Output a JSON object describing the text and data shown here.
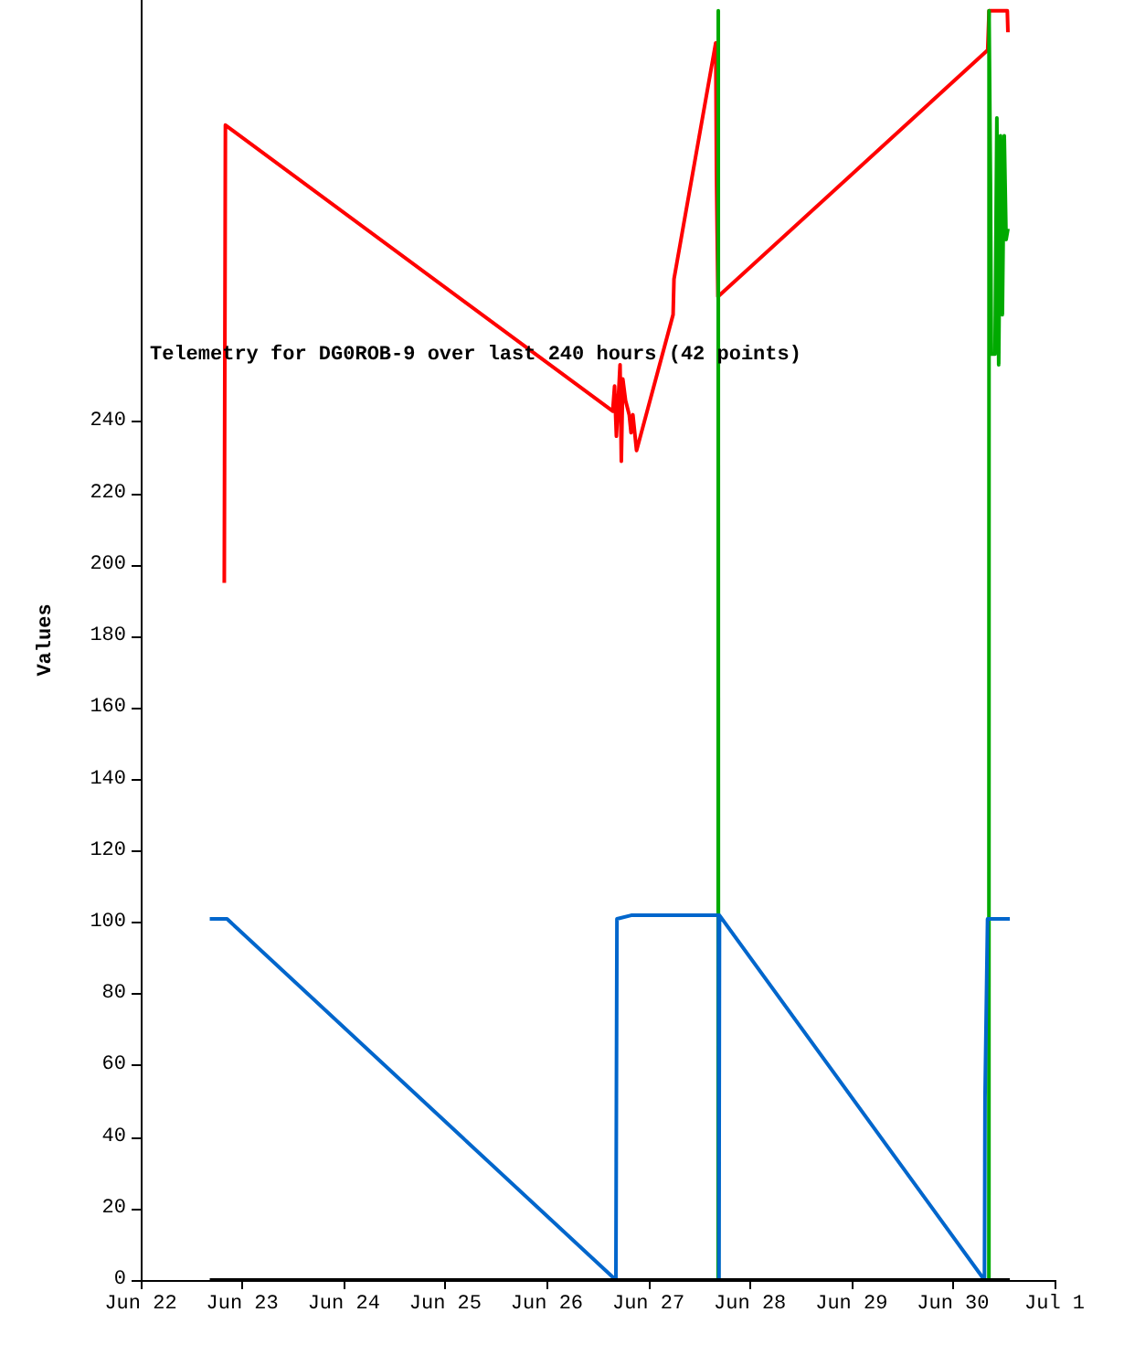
{
  "chart_data": {
    "type": "line",
    "title": "Telemetry for DG0ROB-9 over last 240 hours (42 points)",
    "ylabel": "Values",
    "xlim": [
      "--06-22",
      "--07-01"
    ],
    "xticks": [
      {
        "value": "--06-22",
        "label": "Jun 22"
      },
      {
        "value": "--06-23",
        "label": "Jun 23"
      },
      {
        "value": "--06-24",
        "label": "Jun 24"
      },
      {
        "value": "--06-25",
        "label": "Jun 25"
      },
      {
        "value": "--06-26",
        "label": "Jun 26"
      },
      {
        "value": "--06-27",
        "label": "Jun 27"
      },
      {
        "value": "--06-28",
        "label": "Jun 28"
      },
      {
        "value": "--06-29",
        "label": "Jun 29"
      },
      {
        "value": "--06-30",
        "label": "Jun 30"
      },
      {
        "value": "--07-01",
        "label": "Jul 1"
      }
    ],
    "ylim": [
      0,
      358
    ],
    "yticks": [
      0,
      20,
      40,
      60,
      80,
      100,
      120,
      140,
      160,
      180,
      200,
      220,
      240
    ],
    "grid": false,
    "marker": "none",
    "line_style": "solid",
    "series": [
      {
        "color": "#ff0000",
        "x": [
          "--06-22T19:45",
          "--06-22T20:01",
          "--06-26T15:34",
          "--06-26T16:00",
          "--06-26T16:26",
          "--06-26T17:18",
          "--06-26T17:36",
          "--06-26T17:57",
          "--06-26T18:36",
          "--06-26T19:28",
          "--06-26T19:54",
          "--06-26T20:20",
          "--06-26T21:12",
          "--06-27T05:50",
          "--06-27T06:03",
          "--06-27T15:55",
          "--06-27T16:05",
          "--06-27T16:26",
          "--06-30T08:12",
          "--06-30T08:31",
          "--06-30T12:50",
          "--06-30T12:59"
        ],
        "values": [
          195,
          323,
          243,
          250,
          236,
          256,
          229,
          252,
          246,
          242,
          237,
          242,
          232,
          270,
          280,
          346,
          310,
          275,
          344,
          355,
          355,
          349
        ]
      },
      {
        "color": "#00aa00",
        "x": [
          "--06-27T16:29",
          "--06-27T16:31",
          "--06-27T16:33",
          "--06-30T08:29",
          "--06-30T08:31",
          "--06-30T08:51",
          "--06-30T09:04",
          "--06-30T09:56",
          "--06-30T10:22",
          "--06-30T10:48",
          "--06-30T11:14",
          "--06-30T11:40",
          "--06-30T12:07",
          "--06-30T12:33",
          "--06-30T12:59"
        ],
        "values": [
          0,
          355,
          0,
          0,
          355,
          307,
          259,
          259,
          325,
          256,
          320,
          270,
          320,
          291,
          294
        ]
      },
      {
        "color": "#0066cc",
        "x": [
          "--06-22T16:19",
          "--06-22T20:24",
          "--06-26T16:19",
          "--06-26T16:26",
          "--06-26T16:34",
          "--06-26T19:55",
          "--06-27T16:34",
          "--06-27T16:41",
          "--06-27T16:48",
          "--06-30T07:26",
          "--06-30T07:34",
          "--06-30T08:10",
          "--06-30T13:26"
        ],
        "values": [
          101,
          101,
          0,
          51,
          101,
          102,
          102,
          0,
          102,
          0,
          51,
          101,
          101
        ]
      },
      {
        "color": "#000000",
        "x": [
          "--06-22T16:19",
          "--06-30T13:26"
        ],
        "values": [
          0,
          0
        ]
      }
    ]
  }
}
